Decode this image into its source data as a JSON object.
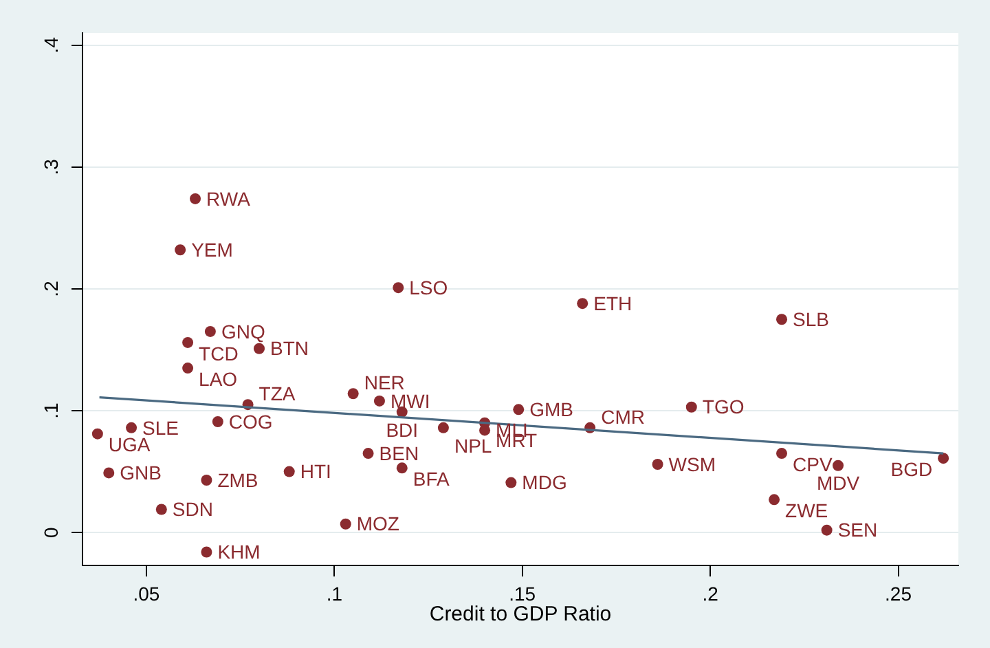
{
  "chart_data": {
    "type": "scatter",
    "xlabel": "Credit to GDP Ratio",
    "xlim": [
      0.033,
      0.266
    ],
    "ylim": [
      -0.027,
      0.41
    ],
    "xticks": [
      {
        "value": 0.05,
        "label": ".05"
      },
      {
        "value": 0.1,
        "label": ".1"
      },
      {
        "value": 0.15,
        "label": ".15"
      },
      {
        "value": 0.2,
        "label": ".2"
      },
      {
        "value": 0.25,
        "label": ".25"
      }
    ],
    "yticks": [
      0,
      {
        "value": 0.1,
        "label": ".1"
      },
      {
        "value": 0.2,
        "label": ".2"
      },
      {
        "value": 0.3,
        "label": ".3"
      },
      {
        "value": 0.4,
        "label": ".4"
      }
    ],
    "grid": "y",
    "marker": "circle",
    "series": [
      {
        "color": "#8b2b2f",
        "x": [
          0.063,
          0.059,
          0.117,
          0.166,
          0.219,
          0.067,
          0.061,
          0.08,
          0.061,
          0.105,
          0.112,
          0.077,
          0.195,
          0.149,
          0.118,
          0.069,
          0.14,
          0.046,
          0.129,
          0.168,
          0.14,
          0.037,
          0.109,
          0.219,
          0.262,
          0.186,
          0.234,
          0.118,
          0.088,
          0.04,
          0.066,
          0.147,
          0.217,
          0.054,
          0.103,
          0.231,
          0.066
        ],
        "values": [
          0.274,
          0.232,
          0.201,
          0.188,
          0.175,
          0.165,
          0.156,
          0.151,
          0.135,
          0.114,
          0.108,
          0.105,
          0.103,
          0.101,
          0.099,
          0.091,
          0.09,
          0.086,
          0.086,
          0.086,
          0.084,
          0.081,
          0.065,
          0.065,
          0.061,
          0.056,
          0.055,
          0.053,
          0.05,
          0.049,
          0.043,
          0.041,
          0.027,
          0.019,
          0.007,
          0.002,
          -0.016
        ],
        "value_labels": [
          "RWA",
          "YEM",
          "LSO",
          "ETH",
          "SLB",
          "GNQ",
          "TCD",
          "BTN",
          "LAO",
          "NER",
          "MWI",
          "TZA",
          "TGO",
          "GMB",
          "BDI",
          "COG",
          "MRT",
          "SLE",
          "NPL",
          "CMR",
          "MLI",
          "UGA",
          "BEN",
          "CPV",
          "BGD",
          "WSM",
          "MDV",
          "BFA",
          "HTI",
          "GNB",
          "ZMB",
          "MDG",
          "ZWE",
          "SDN",
          "MOZ",
          "SEN",
          "KHM"
        ]
      },
      {
        "type": "line",
        "marker": "none",
        "color": "#4b6a82",
        "x": [
          0.0375,
          0.262
        ],
        "values": [
          0.111,
          0.065
        ]
      }
    ]
  }
}
